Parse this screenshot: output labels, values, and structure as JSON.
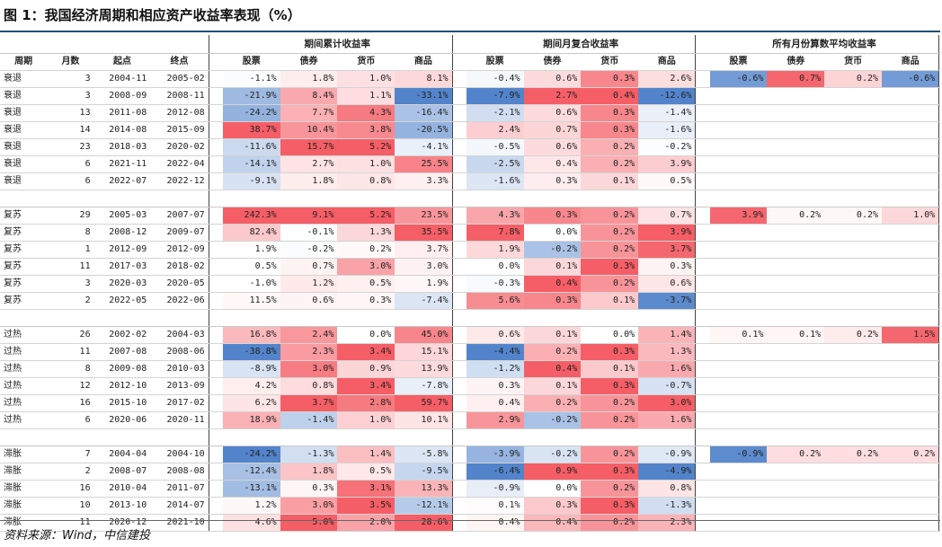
{
  "title": "图 1：我国经济周期和相应资产收益率表现（%）",
  "source": "资料来源：Wind，中信建投",
  "group_headers": [
    "期间累计收益率",
    "期间月复合收益率",
    "所有月份算数平均收益率"
  ],
  "columns": [
    "周期",
    "月数",
    "起点",
    "终点"
  ],
  "asset_columns": [
    "股票",
    "债券",
    "货币",
    "商品"
  ],
  "colors": {
    "pos_max": "#f4565e",
    "neg_max": "#4a7ec8",
    "rule": "#1f4e79"
  },
  "groups": [
    {
      "rows": [
        {
          "phase": "衰退",
          "months": "3",
          "start": "2004-11",
          "end": "2005-02",
          "cum": [
            "-1.1%",
            "1.8%",
            "1.0%",
            "8.1%"
          ],
          "mon": [
            "-0.4%",
            "0.6%",
            "0.3%",
            "2.6%"
          ],
          "cv": [
            -1.1,
            1.8,
            1.0,
            8.1
          ],
          "mv": [
            -0.4,
            0.6,
            0.3,
            2.6
          ]
        },
        {
          "phase": "衰退",
          "months": "3",
          "start": "2008-09",
          "end": "2008-11",
          "cum": [
            "-21.9%",
            "8.4%",
            "1.1%",
            "-33.1%"
          ],
          "mon": [
            "-7.9%",
            "2.7%",
            "0.4%",
            "-12.6%"
          ],
          "cv": [
            -21.9,
            8.4,
            1.1,
            -33.1
          ],
          "mv": [
            -7.9,
            2.7,
            0.4,
            -12.6
          ]
        },
        {
          "phase": "衰退",
          "months": "13",
          "start": "2011-08",
          "end": "2012-08",
          "cum": [
            "-24.2%",
            "7.7%",
            "4.3%",
            "-16.4%"
          ],
          "mon": [
            "-2.1%",
            "0.6%",
            "0.3%",
            "-1.4%"
          ],
          "cv": [
            -24.2,
            7.7,
            4.3,
            -16.4
          ],
          "mv": [
            -2.1,
            0.6,
            0.3,
            -1.4
          ]
        },
        {
          "phase": "衰退",
          "months": "14",
          "start": "2014-08",
          "end": "2015-09",
          "cum": [
            "38.7%",
            "10.4%",
            "3.8%",
            "-20.5%"
          ],
          "mon": [
            "2.4%",
            "0.7%",
            "0.3%",
            "-1.6%"
          ],
          "cv": [
            38.7,
            10.4,
            3.8,
            -20.5
          ],
          "mv": [
            2.4,
            0.7,
            0.3,
            -1.6
          ]
        },
        {
          "phase": "衰退",
          "months": "23",
          "start": "2018-03",
          "end": "2020-02",
          "cum": [
            "-11.6%",
            "15.7%",
            "5.2%",
            "-4.1%"
          ],
          "mon": [
            "-0.5%",
            "0.6%",
            "0.2%",
            "-0.2%"
          ],
          "cv": [
            -11.6,
            15.7,
            5.2,
            -4.1
          ],
          "mv": [
            -0.5,
            0.6,
            0.2,
            -0.2
          ]
        },
        {
          "phase": "衰退",
          "months": "6",
          "start": "2021-11",
          "end": "2022-04",
          "cum": [
            "-14.1%",
            "2.7%",
            "1.0%",
            "25.5%"
          ],
          "mon": [
            "-2.5%",
            "0.4%",
            "0.2%",
            "3.9%"
          ],
          "cv": [
            -14.1,
            2.7,
            1.0,
            25.5
          ],
          "mv": [
            -2.5,
            0.4,
            0.2,
            3.9
          ]
        },
        {
          "phase": "衰退",
          "months": "6",
          "start": "2022-07",
          "end": "2022-12",
          "cum": [
            "-9.1%",
            "1.8%",
            "0.8%",
            "3.3%"
          ],
          "mon": [
            "-1.6%",
            "0.3%",
            "0.1%",
            "0.5%"
          ],
          "cv": [
            -9.1,
            1.8,
            0.8,
            3.3
          ],
          "mv": [
            -1.6,
            0.3,
            0.1,
            0.5
          ]
        }
      ],
      "avg": [
        "-0.6%",
        "0.7%",
        "0.2%",
        "-0.6%"
      ],
      "av": [
        -0.6,
        0.7,
        0.2,
        -0.6
      ]
    },
    {
      "rows": [
        {
          "phase": "复苏",
          "months": "29",
          "start": "2005-03",
          "end": "2007-07",
          "cum": [
            "242.3%",
            "9.1%",
            "5.2%",
            "23.5%"
          ],
          "mon": [
            "4.3%",
            "0.3%",
            "0.2%",
            "0.7%"
          ],
          "cv": [
            242.3,
            9.1,
            5.2,
            23.5
          ],
          "mv": [
            4.3,
            0.3,
            0.2,
            0.7
          ]
        },
        {
          "phase": "复苏",
          "months": "8",
          "start": "2008-12",
          "end": "2009-07",
          "cum": [
            "82.4%",
            "-0.1%",
            "1.3%",
            "35.5%"
          ],
          "mon": [
            "7.8%",
            "0.0%",
            "0.2%",
            "3.9%"
          ],
          "cv": [
            82.4,
            -0.1,
            1.3,
            35.5
          ],
          "mv": [
            7.8,
            0.0,
            0.2,
            3.9
          ]
        },
        {
          "phase": "复苏",
          "months": "1",
          "start": "2012-09",
          "end": "2012-09",
          "cum": [
            "1.9%",
            "-0.2%",
            "0.2%",
            "3.7%"
          ],
          "mon": [
            "1.9%",
            "-0.2%",
            "0.2%",
            "3.7%"
          ],
          "cv": [
            1.9,
            -0.2,
            0.2,
            3.7
          ],
          "mv": [
            1.9,
            -0.2,
            0.2,
            3.7
          ]
        },
        {
          "phase": "复苏",
          "months": "11",
          "start": "2017-03",
          "end": "2018-02",
          "cum": [
            "0.5%",
            "0.7%",
            "3.0%",
            "3.0%"
          ],
          "mon": [
            "0.0%",
            "0.1%",
            "0.3%",
            "0.3%"
          ],
          "cv": [
            0.5,
            0.7,
            3.0,
            3.0
          ],
          "mv": [
            0.0,
            0.1,
            0.3,
            0.3
          ]
        },
        {
          "phase": "复苏",
          "months": "3",
          "start": "2020-03",
          "end": "2020-05",
          "cum": [
            "-1.0%",
            "1.2%",
            "0.5%",
            "1.9%"
          ],
          "mon": [
            "-0.3%",
            "0.4%",
            "0.2%",
            "0.6%"
          ],
          "cv": [
            -1.0,
            1.2,
            0.5,
            1.9
          ],
          "mv": [
            -0.3,
            0.4,
            0.2,
            0.6
          ]
        },
        {
          "phase": "复苏",
          "months": "2",
          "start": "2022-05",
          "end": "2022-06",
          "cum": [
            "11.5%",
            "0.6%",
            "0.3%",
            "-7.4%"
          ],
          "mon": [
            "5.6%",
            "0.3%",
            "0.1%",
            "-3.7%"
          ],
          "cv": [
            11.5,
            0.6,
            0.3,
            -7.4
          ],
          "mv": [
            5.6,
            0.3,
            0.1,
            -3.7
          ]
        }
      ],
      "avg": [
        "3.9%",
        "0.2%",
        "0.2%",
        "1.0%"
      ],
      "av": [
        3.9,
        0.2,
        0.2,
        1.0
      ]
    },
    {
      "rows": [
        {
          "phase": "过热",
          "months": "26",
          "start": "2002-02",
          "end": "2004-03",
          "cum": [
            "16.8%",
            "2.4%",
            "0.0%",
            "45.0%"
          ],
          "mon": [
            "0.6%",
            "0.1%",
            "0.0%",
            "1.4%"
          ],
          "cv": [
            16.8,
            2.4,
            0.0,
            45.0
          ],
          "mv": [
            0.6,
            0.1,
            0.0,
            1.4
          ]
        },
        {
          "phase": "过热",
          "months": "11",
          "start": "2007-08",
          "end": "2008-06",
          "cum": [
            "-38.8%",
            "2.3%",
            "3.4%",
            "15.1%"
          ],
          "mon": [
            "-4.4%",
            "0.2%",
            "0.3%",
            "1.3%"
          ],
          "cv": [
            -38.8,
            2.3,
            3.4,
            15.1
          ],
          "mv": [
            -4.4,
            0.2,
            0.3,
            1.3
          ]
        },
        {
          "phase": "过热",
          "months": "8",
          "start": "2009-08",
          "end": "2010-03",
          "cum": [
            "-8.9%",
            "3.0%",
            "0.9%",
            "13.9%"
          ],
          "mon": [
            "-1.2%",
            "0.4%",
            "0.1%",
            "1.6%"
          ],
          "cv": [
            -8.9,
            3.0,
            0.9,
            13.9
          ],
          "mv": [
            -1.2,
            0.4,
            0.1,
            1.6
          ]
        },
        {
          "phase": "过热",
          "months": "12",
          "start": "2012-10",
          "end": "2013-09",
          "cum": [
            "4.2%",
            "0.8%",
            "3.4%",
            "-7.8%"
          ],
          "mon": [
            "0.3%",
            "0.1%",
            "0.3%",
            "-0.7%"
          ],
          "cv": [
            4.2,
            0.8,
            3.4,
            -7.8
          ],
          "mv": [
            0.3,
            0.1,
            0.3,
            -0.7
          ]
        },
        {
          "phase": "过热",
          "months": "16",
          "start": "2015-10",
          "end": "2017-02",
          "cum": [
            "6.2%",
            "3.7%",
            "2.8%",
            "59.7%"
          ],
          "mon": [
            "0.4%",
            "0.2%",
            "0.2%",
            "3.0%"
          ],
          "cv": [
            6.2,
            3.7,
            2.8,
            59.7
          ],
          "mv": [
            0.4,
            0.2,
            0.2,
            3.0
          ]
        },
        {
          "phase": "过热",
          "months": "6",
          "start": "2020-06",
          "end": "2020-11",
          "cum": [
            "18.9%",
            "-1.4%",
            "1.0%",
            "10.1%"
          ],
          "mon": [
            "2.9%",
            "-0.2%",
            "0.2%",
            "1.6%"
          ],
          "cv": [
            18.9,
            -1.4,
            1.0,
            10.1
          ],
          "mv": [
            2.9,
            -0.2,
            0.2,
            1.6
          ]
        }
      ],
      "avg": [
        "0.1%",
        "0.1%",
        "0.2%",
        "1.5%"
      ],
      "av": [
        0.1,
        0.1,
        0.2,
        1.5
      ]
    },
    {
      "rows": [
        {
          "phase": "滞胀",
          "months": "7",
          "start": "2004-04",
          "end": "2004-10",
          "cum": [
            "-24.2%",
            "-1.3%",
            "1.4%",
            "-5.8%"
          ],
          "mon": [
            "-3.9%",
            "-0.2%",
            "0.2%",
            "-0.9%"
          ],
          "cv": [
            -24.2,
            -1.3,
            1.4,
            -5.8
          ],
          "mv": [
            -3.9,
            -0.2,
            0.2,
            -0.9
          ]
        },
        {
          "phase": "滞胀",
          "months": "2",
          "start": "2008-07",
          "end": "2008-08",
          "cum": [
            "-12.4%",
            "1.8%",
            "0.5%",
            "-9.5%"
          ],
          "mon": [
            "-6.4%",
            "0.9%",
            "0.3%",
            "-4.9%"
          ],
          "cv": [
            -12.4,
            1.8,
            0.5,
            -9.5
          ],
          "mv": [
            -6.4,
            0.9,
            0.3,
            -4.9
          ]
        },
        {
          "phase": "滞胀",
          "months": "16",
          "start": "2010-04",
          "end": "2011-07",
          "cum": [
            "-13.1%",
            "0.3%",
            "3.1%",
            "13.3%"
          ],
          "mon": [
            "-0.9%",
            "0.0%",
            "0.2%",
            "0.8%"
          ],
          "cv": [
            -13.1,
            0.3,
            3.1,
            13.3
          ],
          "mv": [
            -0.9,
            0.0,
            0.2,
            0.8
          ]
        },
        {
          "phase": "滞胀",
          "months": "10",
          "start": "2013-10",
          "end": "2014-07",
          "cum": [
            "1.2%",
            "3.0%",
            "3.5%",
            "-12.1%"
          ],
          "mon": [
            "0.1%",
            "0.3%",
            "0.3%",
            "-1.3%"
          ],
          "cv": [
            1.2,
            3.0,
            3.5,
            -12.1
          ],
          "mv": [
            0.1,
            0.3,
            0.3,
            -1.3
          ]
        },
        {
          "phase": "滞胀",
          "months": "11",
          "start": "2020-12",
          "end": "2021-10",
          "cum": [
            "4.6%",
            "5.0%",
            "2.0%",
            "28.6%"
          ],
          "mon": [
            "0.4%",
            "0.4%",
            "0.2%",
            "2.3%"
          ],
          "cv": [
            4.6,
            5.0,
            2.0,
            28.6
          ],
          "mv": [
            0.4,
            0.4,
            0.2,
            2.3
          ]
        }
      ],
      "avg": [
        "-0.9%",
        "0.2%",
        "0.2%",
        "0.2%"
      ],
      "av": [
        -0.9,
        0.2,
        0.2,
        0.2
      ]
    }
  ]
}
